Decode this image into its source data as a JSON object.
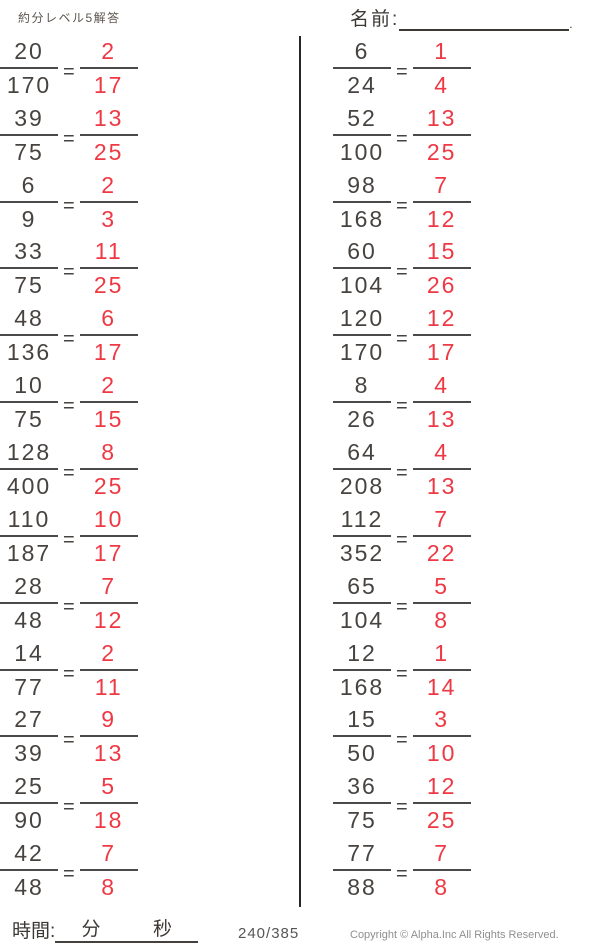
{
  "header": {
    "title": "約分レベル5解答",
    "name_label": "名前:",
    "name_line_end": "."
  },
  "equals_sign": "=",
  "problems": {
    "left": [
      {
        "num": "20",
        "den": "170",
        "ans_num": "2",
        "ans_den": "17"
      },
      {
        "num": "39",
        "den": "75",
        "ans_num": "13",
        "ans_den": "25"
      },
      {
        "num": "6",
        "den": "9",
        "ans_num": "2",
        "ans_den": "3"
      },
      {
        "num": "33",
        "den": "75",
        "ans_num": "11",
        "ans_den": "25"
      },
      {
        "num": "48",
        "den": "136",
        "ans_num": "6",
        "ans_den": "17"
      },
      {
        "num": "10",
        "den": "75",
        "ans_num": "2",
        "ans_den": "15"
      },
      {
        "num": "128",
        "den": "400",
        "ans_num": "8",
        "ans_den": "25"
      },
      {
        "num": "110",
        "den": "187",
        "ans_num": "10",
        "ans_den": "17"
      },
      {
        "num": "28",
        "den": "48",
        "ans_num": "7",
        "ans_den": "12"
      },
      {
        "num": "14",
        "den": "77",
        "ans_num": "2",
        "ans_den": "11"
      },
      {
        "num": "27",
        "den": "39",
        "ans_num": "9",
        "ans_den": "13"
      },
      {
        "num": "25",
        "den": "90",
        "ans_num": "5",
        "ans_den": "18"
      },
      {
        "num": "42",
        "den": "48",
        "ans_num": "7",
        "ans_den": "8"
      }
    ],
    "right": [
      {
        "num": "6",
        "den": "24",
        "ans_num": "1",
        "ans_den": "4"
      },
      {
        "num": "52",
        "den": "100",
        "ans_num": "13",
        "ans_den": "25"
      },
      {
        "num": "98",
        "den": "168",
        "ans_num": "7",
        "ans_den": "12"
      },
      {
        "num": "60",
        "den": "104",
        "ans_num": "15",
        "ans_den": "26"
      },
      {
        "num": "120",
        "den": "170",
        "ans_num": "12",
        "ans_den": "17"
      },
      {
        "num": "8",
        "den": "26",
        "ans_num": "4",
        "ans_den": "13"
      },
      {
        "num": "64",
        "den": "208",
        "ans_num": "4",
        "ans_den": "13"
      },
      {
        "num": "112",
        "den": "352",
        "ans_num": "7",
        "ans_den": "22"
      },
      {
        "num": "65",
        "den": "104",
        "ans_num": "5",
        "ans_den": "8"
      },
      {
        "num": "12",
        "den": "168",
        "ans_num": "1",
        "ans_den": "14"
      },
      {
        "num": "15",
        "den": "50",
        "ans_num": "3",
        "ans_den": "10"
      },
      {
        "num": "36",
        "den": "75",
        "ans_num": "12",
        "ans_den": "25"
      },
      {
        "num": "77",
        "den": "88",
        "ans_num": "7",
        "ans_den": "8"
      }
    ]
  },
  "footer": {
    "time_label": "時間:",
    "minutes_label": "分",
    "seconds_label": "秒",
    "page_number": "240/385",
    "copyright": "Copyright ©  Alpha.Inc All Rights Reserved."
  },
  "colors": {
    "ink": "#474340",
    "bar": "#4a4a4a",
    "answer_red": "#ee3944",
    "divider": "#262626",
    "muted": "#8f8f8f"
  }
}
